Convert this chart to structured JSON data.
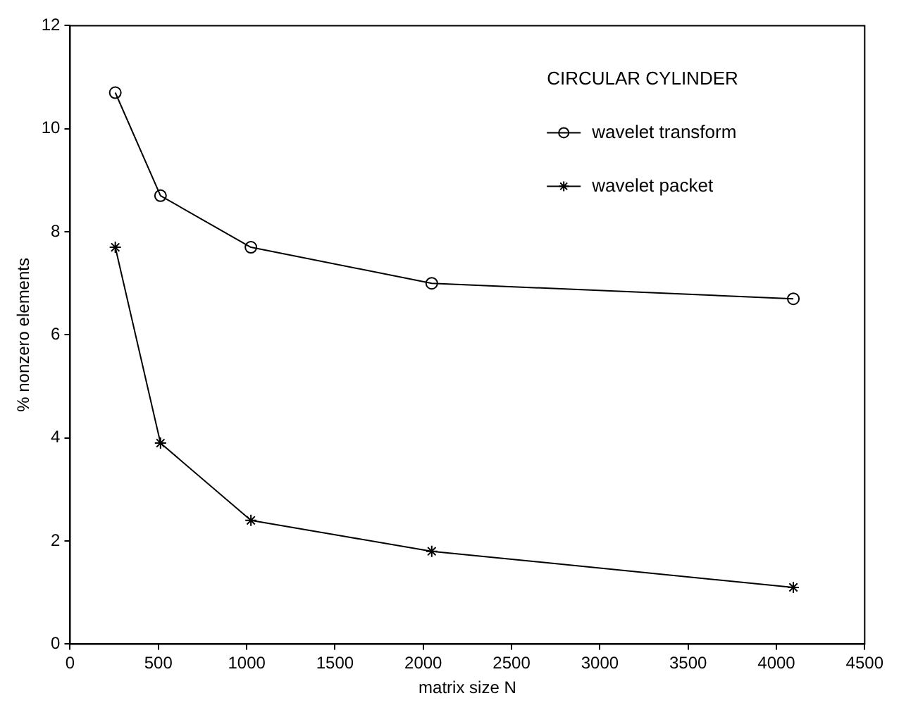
{
  "chart_data": {
    "type": "line",
    "xlabel": "matrix size N",
    "ylabel": "% nonzero elements",
    "legend_title": "CIRCULAR CYLINDER",
    "x": [
      256,
      512,
      1024,
      2048,
      4096
    ],
    "series": [
      {
        "name": "wavelet transform",
        "color": "#000000",
        "marker": "circle",
        "values": [
          10.7,
          8.7,
          7.7,
          7.0,
          6.7
        ]
      },
      {
        "name": "wavelet packet",
        "color": "#000000",
        "marker": "cross",
        "values": [
          7.7,
          3.9,
          2.4,
          1.8,
          1.1
        ]
      }
    ],
    "xlim": [
      0,
      4500
    ],
    "xticks": [
      0,
      500,
      1000,
      1500,
      2000,
      2500,
      3000,
      3500,
      4000,
      4500
    ],
    "ylim": [
      0,
      12
    ],
    "yticks": [
      0,
      2,
      4,
      6,
      8,
      10,
      12
    ],
    "grid": false,
    "legend": "top right"
  }
}
